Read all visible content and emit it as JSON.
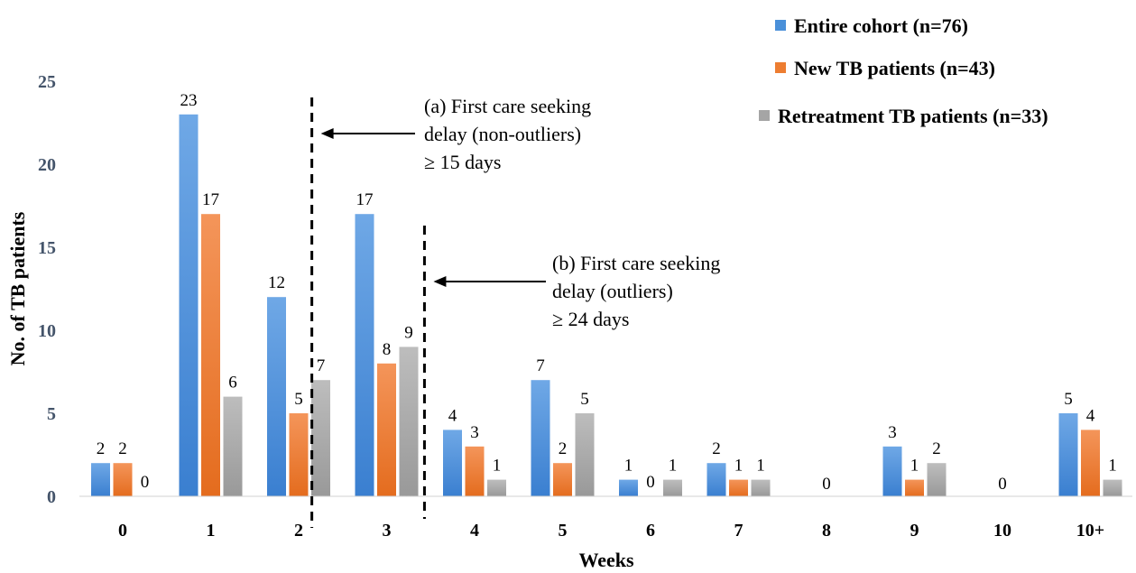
{
  "chart_data": {
    "type": "bar",
    "xlabel": "Weeks",
    "ylabel": "No. of TB patients",
    "ylim": [
      0,
      25
    ],
    "yticks": [
      0,
      5,
      10,
      15,
      20,
      25
    ],
    "categories": [
      "0",
      "1",
      "2",
      "3",
      "4",
      "5",
      "6",
      "7",
      "8",
      "9",
      "10",
      "10+"
    ],
    "series": [
      {
        "name": "Entire cohort (n=76)",
        "color": "#4a90d9",
        "values": [
          2,
          23,
          12,
          17,
          4,
          7,
          1,
          2,
          0,
          3,
          0,
          5
        ]
      },
      {
        "name": "New TB patients (n=43)",
        "color": "#ed7d31",
        "values": [
          2,
          17,
          5,
          8,
          3,
          2,
          0,
          1,
          0,
          1,
          0,
          4
        ]
      },
      {
        "name": "Retreatment TB patients (n=33)",
        "color": "#a5a5a5",
        "values": [
          0,
          6,
          7,
          9,
          1,
          5,
          1,
          1,
          0,
          2,
          0,
          1
        ]
      }
    ],
    "data_labels": [
      {
        "category": "0",
        "texts": [
          "2",
          "2",
          "0"
        ]
      },
      {
        "category": "1",
        "texts": [
          "23",
          "17",
          "6"
        ]
      },
      {
        "category": "2",
        "texts": [
          "12",
          "5",
          "7"
        ]
      },
      {
        "category": "3",
        "texts": [
          "17",
          "8",
          "9"
        ]
      },
      {
        "category": "4",
        "texts": [
          "4",
          "3",
          "1"
        ]
      },
      {
        "category": "5",
        "texts": [
          "7",
          "2",
          "5"
        ]
      },
      {
        "category": "6",
        "texts": [
          "1",
          "0",
          "1"
        ]
      },
      {
        "category": "7",
        "texts": [
          "2",
          "1",
          "1"
        ]
      },
      {
        "category": "8",
        "texts": [
          "0"
        ]
      },
      {
        "category": "9",
        "texts": [
          "3",
          "1",
          "2"
        ]
      },
      {
        "category": "10",
        "texts": [
          "0"
        ]
      },
      {
        "category": "10+",
        "texts": [
          "5",
          "4",
          "1"
        ]
      }
    ],
    "legend_position": "top-right",
    "grid": false,
    "annotations": [
      {
        "id": "a",
        "lines": [
          "(a) First care seeking",
          "delay (non-outliers)",
          "≥ 15 days"
        ],
        "marker_week": 2.15
      },
      {
        "id": "b",
        "lines": [
          "(b) First care seeking",
          "delay (outliers)",
          "≥ 24 days"
        ],
        "marker_week": 3.43
      }
    ]
  }
}
